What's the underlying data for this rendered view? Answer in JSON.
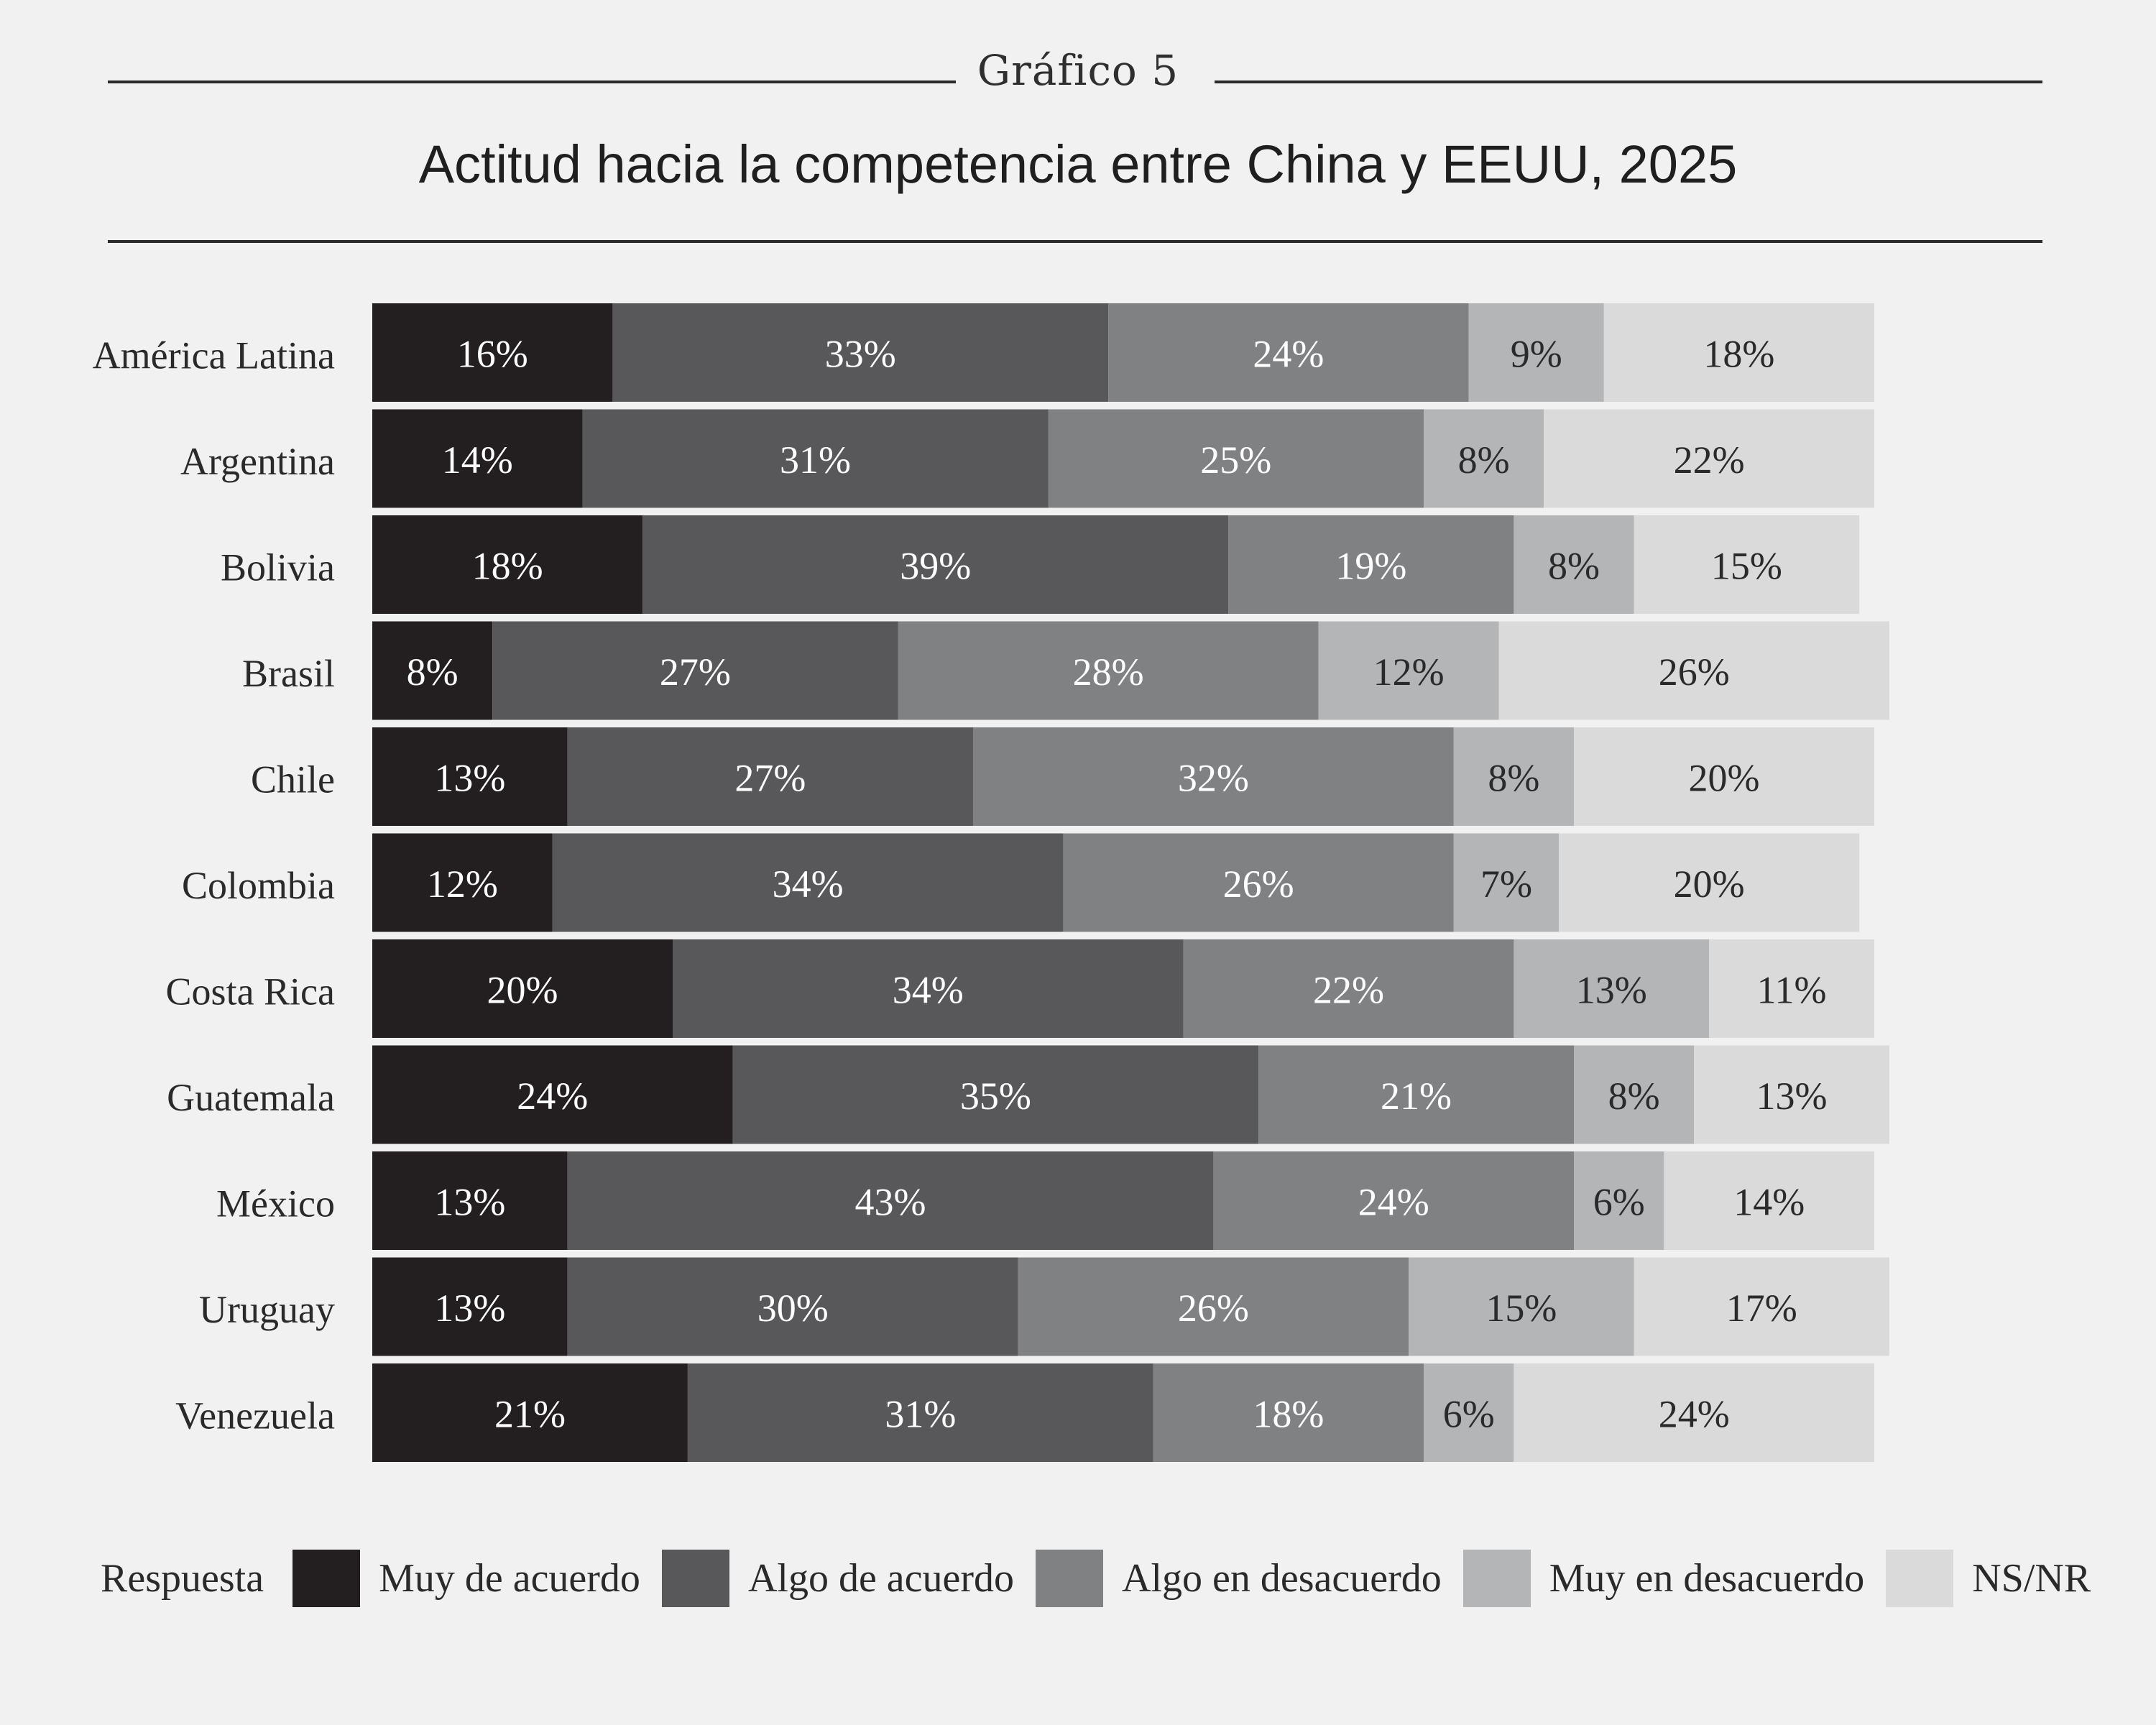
{
  "header": {
    "kicker": "Gráfico 5",
    "title": "Actitud hacia la competencia entre China y EEUU, 2025"
  },
  "legend": {
    "title": "Respuesta"
  },
  "colors": {
    "background": "#f1f1f1",
    "Muy de acuerdo": "#231f20",
    "Algo de acuerdo": "#58585a",
    "Algo en desacuerdo": "#808183",
    "Muy en desacuerdo": "#b4b5b7",
    "NS/NR": "#dadadb"
  },
  "chart_data": {
    "type": "bar",
    "orientation": "horizontal",
    "stacked": true,
    "categories": [
      "América Latina",
      "Argentina",
      "Bolivia",
      "Brasil",
      "Chile",
      "Colombia",
      "Costa Rica",
      "Guatemala",
      "México",
      "Uruguay",
      "Venezuela"
    ],
    "series": [
      {
        "name": "Muy de acuerdo",
        "values": [
          16,
          14,
          18,
          8,
          13,
          12,
          20,
          24,
          13,
          13,
          21
        ]
      },
      {
        "name": "Algo de acuerdo",
        "values": [
          33,
          31,
          39,
          27,
          27,
          34,
          34,
          35,
          43,
          30,
          31
        ]
      },
      {
        "name": "Algo en desacuerdo",
        "values": [
          24,
          25,
          19,
          28,
          32,
          26,
          22,
          21,
          24,
          26,
          18
        ]
      },
      {
        "name": "Muy en desacuerdo",
        "values": [
          9,
          8,
          8,
          12,
          8,
          7,
          13,
          8,
          6,
          15,
          6
        ]
      },
      {
        "name": "NS/NR",
        "values": [
          18,
          22,
          15,
          26,
          20,
          20,
          11,
          13,
          14,
          17,
          24
        ]
      }
    ],
    "value_format": "percent",
    "xlim": [
      0,
      100
    ],
    "grid": false,
    "legend_position": "bottom"
  }
}
